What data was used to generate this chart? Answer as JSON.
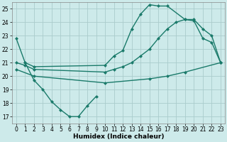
{
  "bg_color": "#cdeaea",
  "grid_color": "#aacccc",
  "line_color": "#1a7a6a",
  "line_width": 1.0,
  "marker": "D",
  "marker_size": 2.5,
  "xlabel": "Humidex (Indice chaleur)",
  "xlim": [
    -0.5,
    23.5
  ],
  "ylim": [
    16.5,
    25.5
  ],
  "yticks": [
    17,
    18,
    19,
    20,
    21,
    22,
    23,
    24,
    25
  ],
  "xticks": [
    0,
    1,
    2,
    3,
    4,
    5,
    6,
    7,
    8,
    9,
    10,
    11,
    12,
    13,
    14,
    15,
    16,
    17,
    18,
    19,
    20,
    21,
    22,
    23
  ],
  "lines": [
    {
      "x": [
        1,
        2,
        3,
        4,
        5,
        6,
        7,
        8,
        9
      ],
      "y": [
        21.0,
        19.7,
        19.0,
        18.1,
        17.5,
        17.0,
        17.0,
        17.8,
        18.5
      ]
    },
    {
      "x": [
        0,
        1,
        2,
        10,
        11,
        12,
        13,
        14,
        15,
        16,
        17,
        19,
        20,
        21,
        22,
        23
      ],
      "y": [
        22.8,
        21.0,
        20.7,
        20.8,
        21.5,
        21.9,
        23.5,
        24.6,
        25.3,
        25.2,
        25.2,
        24.2,
        24.1,
        22.8,
        22.5,
        21.0
      ]
    },
    {
      "x": [
        0,
        1,
        2,
        10,
        11,
        12,
        13,
        14,
        15,
        16,
        17,
        18,
        19,
        20,
        21,
        22,
        23
      ],
      "y": [
        21.0,
        20.8,
        20.5,
        20.3,
        20.5,
        20.7,
        21.0,
        21.5,
        22.0,
        22.8,
        23.5,
        24.0,
        24.2,
        24.2,
        23.5,
        23.0,
        21.0
      ]
    },
    {
      "x": [
        0,
        2,
        10,
        15,
        17,
        19,
        23
      ],
      "y": [
        20.5,
        20.0,
        19.5,
        19.8,
        20.0,
        20.3,
        21.0
      ]
    }
  ]
}
